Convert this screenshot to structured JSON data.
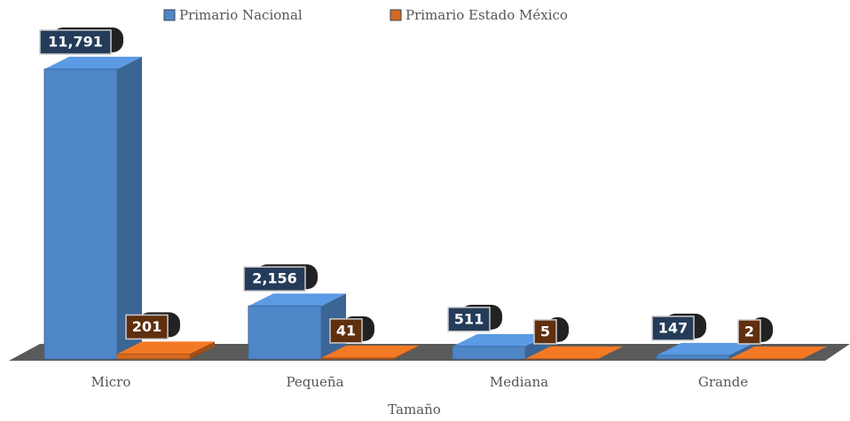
{
  "chart_data": {
    "type": "bar3d",
    "x_label": "Tamaño",
    "categories": [
      "Micro",
      "Pequeña",
      "Mediana",
      "Grande"
    ],
    "series": [
      {
        "name": "Primario Nacional",
        "color": "#4f86c6",
        "values": [
          11791,
          2156,
          511,
          147
        ],
        "value_labels": [
          "11,791",
          "2,156",
          "511",
          "147"
        ]
      },
      {
        "name": "Primario Estado México",
        "color": "#d4691f",
        "values": [
          201,
          41,
          5,
          2
        ],
        "value_labels": [
          "201",
          "41",
          "5",
          "2"
        ]
      }
    ],
    "legend": "top"
  }
}
